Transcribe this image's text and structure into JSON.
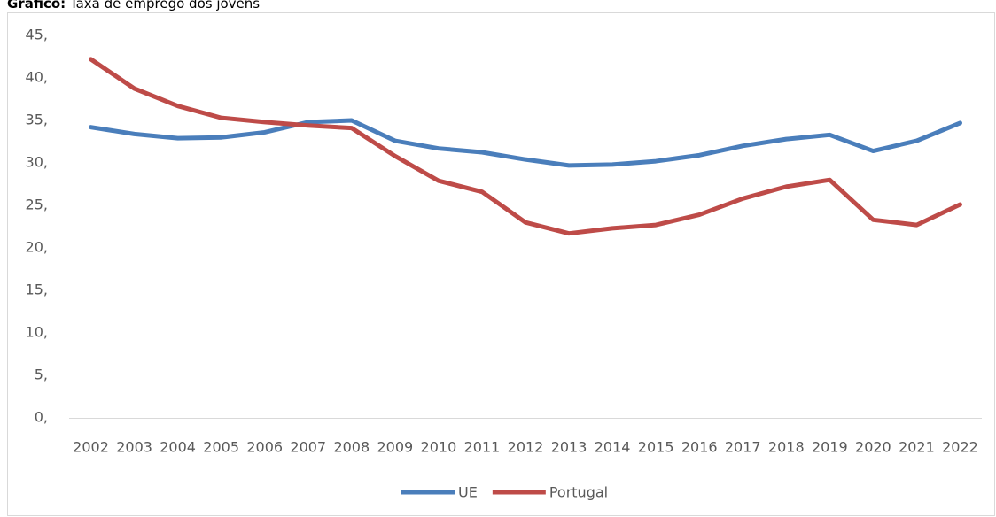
{
  "chart_data": {
    "type": "line",
    "title_label": "Gráfico:",
    "title": "Taxa de emprego dos jovens",
    "categories": [
      "2002",
      "2003",
      "2004",
      "2005",
      "2006",
      "2007",
      "2008",
      "2009",
      "2010",
      "2011",
      "2012",
      "2013",
      "2014",
      "2015",
      "2016",
      "2017",
      "2018",
      "2019",
      "2020",
      "2021",
      "2022"
    ],
    "series": [
      {
        "name": "UE",
        "color": "#4a7ebb",
        "values": [
          34.2,
          33.4,
          32.9,
          33.0,
          33.6,
          34.8,
          35.0,
          32.6,
          31.7,
          31.25,
          30.4,
          29.7,
          29.8,
          30.2,
          30.9,
          32.0,
          32.8,
          33.3,
          31.4,
          32.6,
          34.7
        ]
      },
      {
        "name": "Portugal",
        "color": "#be4b48",
        "values": [
          42.2,
          38.75,
          36.7,
          35.3,
          34.8,
          34.4,
          34.1,
          30.8,
          27.9,
          26.6,
          23.0,
          21.7,
          22.3,
          22.7,
          23.9,
          25.8,
          27.2,
          28.0,
          23.3,
          22.7,
          25.1
        ]
      }
    ],
    "ylim": [
      0,
      45
    ],
    "yticks": [
      {
        "value": 0,
        "label": "0,"
      },
      {
        "value": 5,
        "label": "5,"
      },
      {
        "value": 10,
        "label": "10,"
      },
      {
        "value": 15,
        "label": "15,"
      },
      {
        "value": 20,
        "label": "20,"
      },
      {
        "value": 25,
        "label": "25,"
      },
      {
        "value": 30,
        "label": "30,"
      },
      {
        "value": 35,
        "label": "35,"
      },
      {
        "value": 40,
        "label": "40,"
      },
      {
        "value": 45,
        "label": "45,"
      }
    ],
    "grid": false,
    "legend": "bottom"
  }
}
